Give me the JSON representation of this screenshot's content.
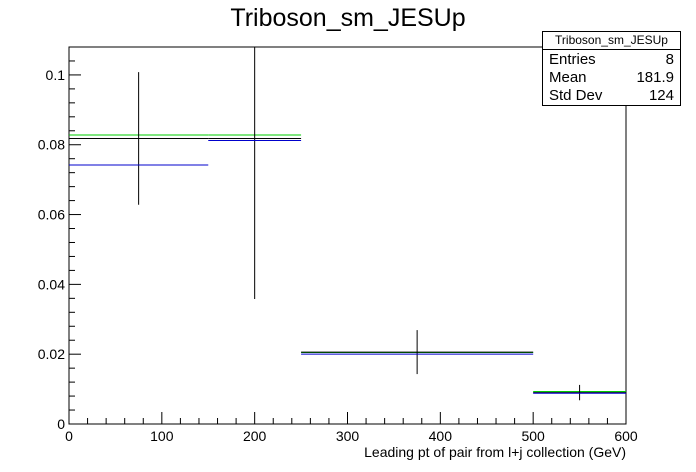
{
  "chart_data": {
    "type": "histogram",
    "title": "Triboson_sm_JESUp",
    "xlabel": "Leading pt of pair from l+j collection (GeV)",
    "ylabel": "",
    "xlim": [
      0,
      600
    ],
    "ylim": [
      0,
      0.108
    ],
    "x_ticks": [
      0,
      100,
      200,
      300,
      400,
      500,
      600
    ],
    "y_ticks": [
      0,
      0.02,
      0.04,
      0.06,
      0.08,
      0.1
    ],
    "y_tick_labels": [
      "0",
      "0.02",
      "0.04",
      "0.06",
      "0.08",
      "0.1"
    ],
    "grid": false,
    "series": [
      {
        "color": "#00cc00",
        "bins": [
          {
            "x_low": 0,
            "x_high": 150,
            "value": 0.0828
          },
          {
            "x_low": 150,
            "x_high": 250,
            "value": 0.0828
          },
          {
            "x_low": 250,
            "x_high": 500,
            "value": 0.0205
          },
          {
            "x_low": 500,
            "x_high": 600,
            "value": 0.0093
          }
        ]
      },
      {
        "color": "#000000",
        "bins": [
          {
            "x_low": 0,
            "x_high": 150,
            "value": 0.0818,
            "error": 0.019
          },
          {
            "x_low": 150,
            "x_high": 250,
            "value": 0.0818,
            "error": 0.046
          },
          {
            "x_low": 250,
            "x_high": 500,
            "value": 0.0206,
            "error": 0.0063
          },
          {
            "x_low": 500,
            "x_high": 600,
            "value": 0.009,
            "error": 0.0022
          }
        ]
      },
      {
        "color": "#0000cc",
        "bins": [
          {
            "x_low": 0,
            "x_high": 150,
            "value": 0.0742
          },
          {
            "x_low": 150,
            "x_high": 250,
            "value": 0.0812
          },
          {
            "x_low": 250,
            "x_high": 500,
            "value": 0.02
          },
          {
            "x_low": 500,
            "x_high": 600,
            "value": 0.0088
          }
        ]
      }
    ],
    "stats": {
      "title": "Triboson_sm_JESUp",
      "rows": [
        {
          "label": "Entries",
          "value": "8"
        },
        {
          "label": "Mean",
          "value": "181.9"
        },
        {
          "label": "Std Dev",
          "value": "124"
        }
      ]
    }
  }
}
